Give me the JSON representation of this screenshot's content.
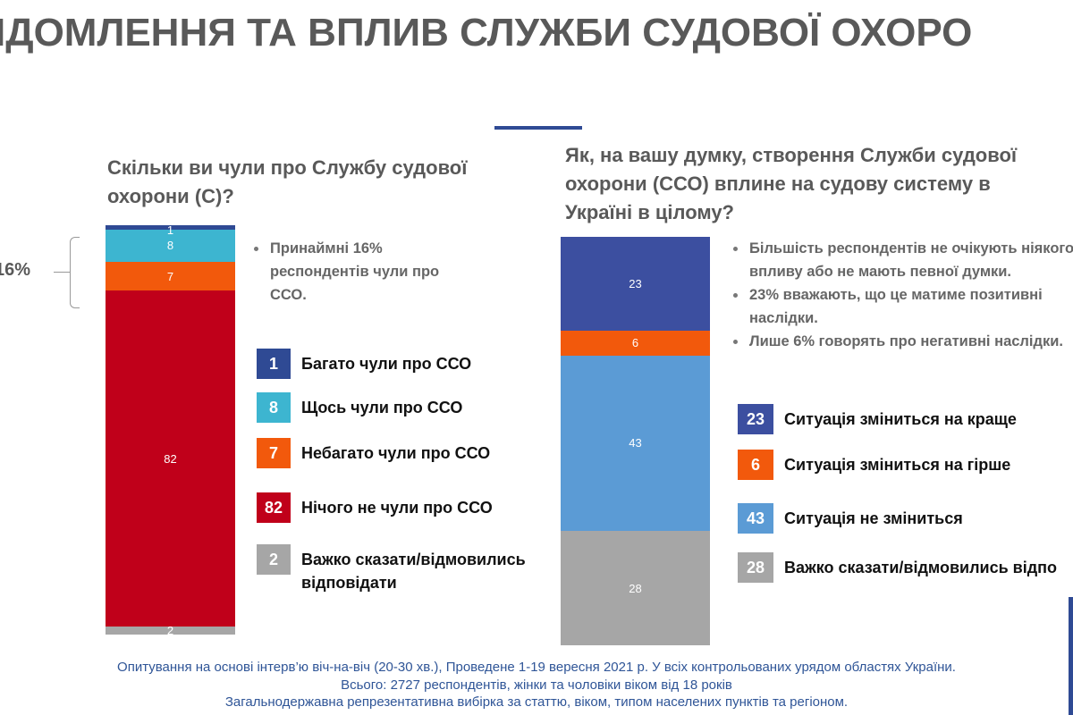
{
  "title": "ІДОМЛЕННЯ ТА ВПЛИВ СЛУЖБИ СУДОВОЇ ОХОРО",
  "chart_data": [
    {
      "type": "stacked-bar",
      "title": "Скільки ви чули про Службу судової охорони (С)?",
      "ylim": [
        0,
        100
      ],
      "series": [
        {
          "name": "Важко сказати/відмовились відповідати",
          "color": "#a6a6a6",
          "values": [
            2
          ]
        },
        {
          "name": "Нічого не чули про ССО",
          "color": "#c0001a",
          "values": [
            82
          ]
        },
        {
          "name": "Небагато чули про ССО",
          "color": "#f2590c",
          "values": [
            7
          ]
        },
        {
          "name": "Щось чули про ССО",
          "color": "#3db5d0",
          "values": [
            8
          ]
        },
        {
          "name": "Багато чули про ССО",
          "color": "#2f4a94",
          "values": [
            1
          ]
        }
      ],
      "bracket_label": "16%",
      "notes": [
        "Принаймні 16% респондентів чули про ССО."
      ]
    },
    {
      "type": "stacked-bar",
      "title": "Як, на вашу думку, створення Служби судової охорони (ССО) вплине на судову систему в Україні в цілому?",
      "ylim": [
        0,
        100
      ],
      "series": [
        {
          "name": "Важко сказати/відмовились відпо",
          "color": "#a6a6a6",
          "values": [
            28
          ]
        },
        {
          "name": "Ситуація не зміниться",
          "color": "#5b9bd5",
          "values": [
            43
          ]
        },
        {
          "name": "Ситуація зміниться на гірше",
          "color": "#f2590c",
          "values": [
            6
          ]
        },
        {
          "name": "Ситуація зміниться на краще",
          "color": "#3c4fa0",
          "values": [
            23
          ]
        }
      ],
      "notes": [
        "Більшість респондентів не очікують ніякого впливу або не мають певної думки.",
        "23% вважають, що це матиме позитивні наслідки.",
        "Лише 6% говорять про негативні наслідки."
      ]
    }
  ],
  "footer": [
    "Опитування на основі інтерв’ю віч-на-віч (20-30 хв.), Проведене 1-19 вересня 2021 р. У всіх контрольованих урядом областях України.",
    "Всього: 2727 респондентів, жінки та чоловіки віком від 18 років",
    "Загальнодержавна репрезентативна вибірка за статтю, віком, типом населених пунктів та регіоном."
  ]
}
